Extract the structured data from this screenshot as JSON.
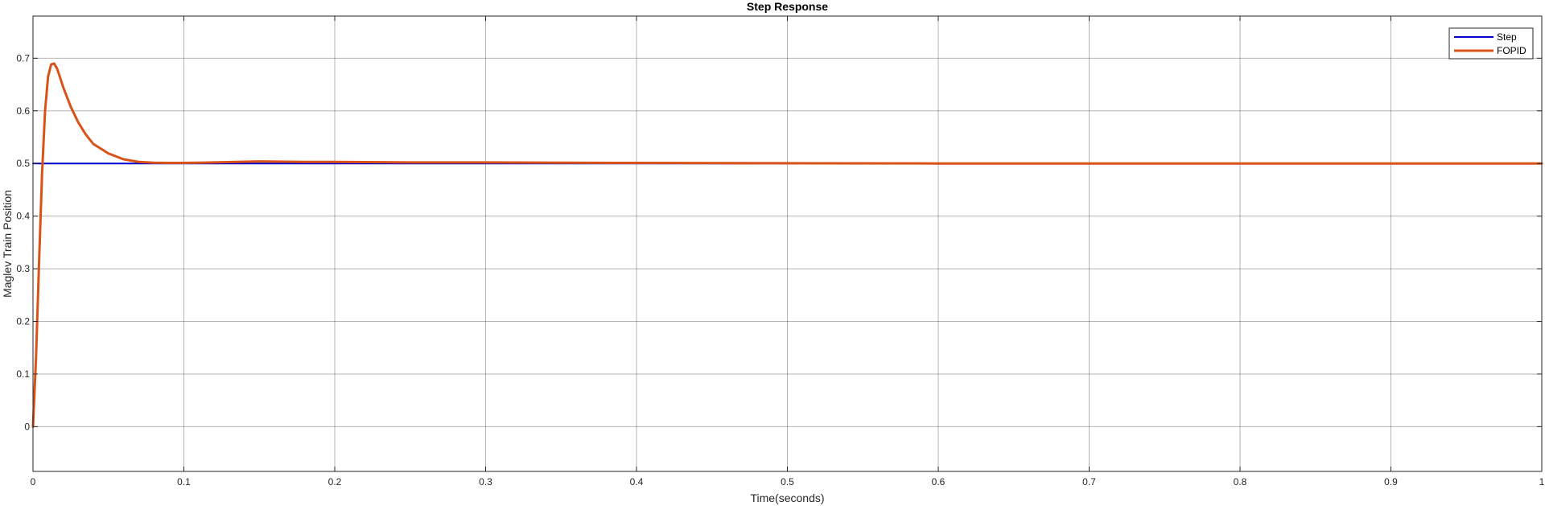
{
  "chart_data": {
    "type": "line",
    "title": "Step Response",
    "xlabel": "Time(seconds)",
    "ylabel": "Maglev Train Position",
    "xlim": [
      0,
      1
    ],
    "ylim": [
      -0.085,
      0.78
    ],
    "xticks": [
      0,
      0.1,
      0.2,
      0.3,
      0.4,
      0.5,
      0.6,
      0.7,
      0.8,
      0.9,
      1
    ],
    "xtick_labels": [
      "0",
      "0.1",
      "0.2",
      "0.3",
      "0.4",
      "0.5",
      "0.6",
      "0.7",
      "0.8",
      "0.9",
      "1"
    ],
    "yticks": [
      0,
      0.1,
      0.2,
      0.3,
      0.4,
      0.5,
      0.6,
      0.7
    ],
    "ytick_labels": [
      "0",
      "0.1",
      "0.2",
      "0.3",
      "0.4",
      "0.5",
      "0.6",
      "0.7"
    ],
    "grid": true,
    "legend_position": "top-right",
    "series": [
      {
        "name": "Step",
        "color": "#0000cc",
        "x": [
          0,
          1
        ],
        "y": [
          0.5,
          0.5
        ]
      },
      {
        "name": "FOPID",
        "color": "#d95319",
        "x": [
          0,
          0.002,
          0.004,
          0.006,
          0.008,
          0.01,
          0.012,
          0.014,
          0.016,
          0.018,
          0.02,
          0.025,
          0.03,
          0.035,
          0.04,
          0.05,
          0.06,
          0.07,
          0.08,
          0.09,
          0.1,
          0.12,
          0.15,
          0.18,
          0.2,
          0.25,
          0.3,
          0.35,
          0.4,
          0.5,
          0.6,
          0.7,
          0.8,
          0.9,
          1.0
        ],
        "y": [
          0,
          0.13,
          0.31,
          0.48,
          0.6,
          0.665,
          0.688,
          0.69,
          0.68,
          0.663,
          0.645,
          0.608,
          0.578,
          0.555,
          0.537,
          0.519,
          0.508,
          0.503,
          0.5015,
          0.501,
          0.501,
          0.502,
          0.504,
          0.503,
          0.503,
          0.502,
          0.502,
          0.5015,
          0.501,
          0.5005,
          0.5,
          0.5,
          0.5,
          0.5,
          0.5
        ]
      }
    ]
  }
}
